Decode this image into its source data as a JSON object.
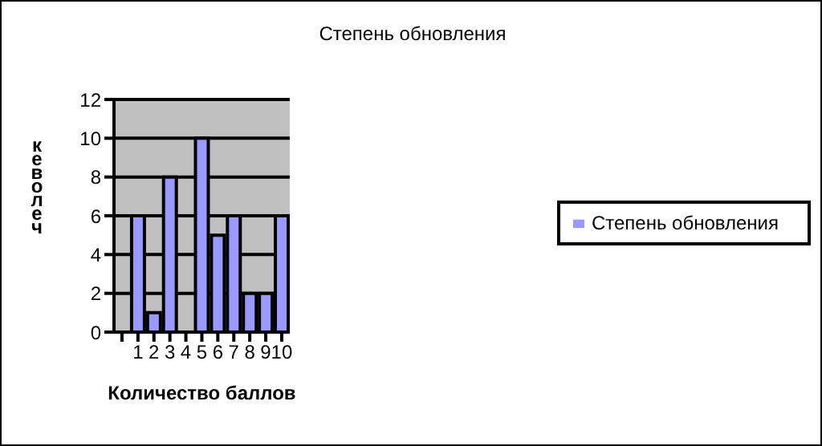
{
  "chart_data": {
    "type": "bar",
    "title": "Степень обновления",
    "xlabel": "Количество баллов",
    "ylabel": "кеволеч",
    "categories": [
      null,
      "1",
      "2",
      "3",
      "4",
      "5",
      "6",
      "7",
      "8",
      "9",
      "10"
    ],
    "series": [
      {
        "name": "Степень обновления",
        "color": "#9999ff",
        "values": [
          null,
          6,
          1,
          8,
          0,
          10,
          5,
          6,
          2,
          2,
          6
        ]
      }
    ],
    "ylim": [
      0,
      12
    ],
    "yticks": [
      0,
      2,
      4,
      6,
      8,
      10,
      12
    ],
    "grid": "y",
    "legend": "right"
  }
}
